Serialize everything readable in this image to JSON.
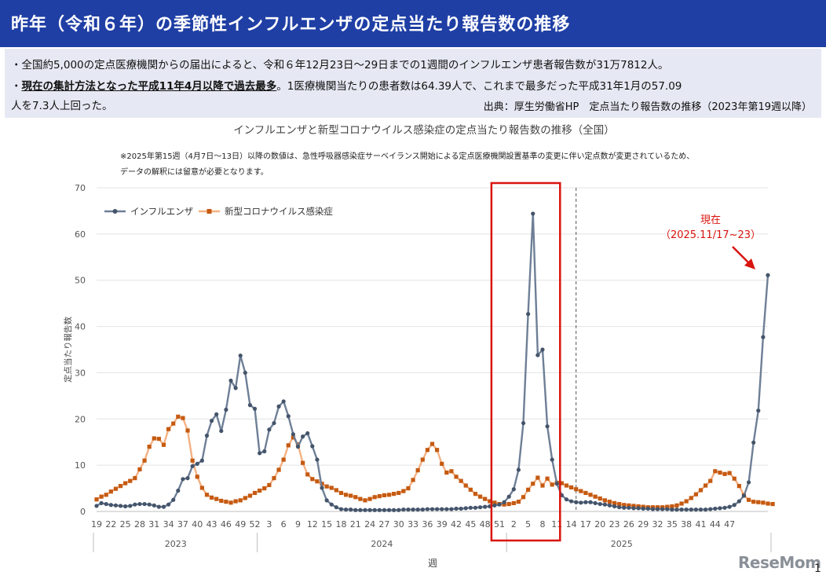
{
  "slide": {
    "title": "昨年（令和６年）の季節性インフルエンザの定点当たり報告数の推移",
    "bullet1": "・全国約5,000の定点医療機関からの届出によると、令和６年12月23日～29日までの1週間のインフルエンザ患者報告数が31万7812人。",
    "bullet2_prefix": "・",
    "bullet2_bold": "現在の集計方法となった平成11年4月以降で過去最多",
    "bullet2_rest": "。1医療機関当たりの患者数は64.39人で、これまで最多だった平成31年1月の57.09",
    "bullet3": "人を7.3人上回った。",
    "source": "出典：厚生労働省HP　定点当たり報告数の推移（2023年第19週以降）",
    "page_number": "1",
    "logo": "ReseMom"
  },
  "colors": {
    "title_bg": "#1f3fa5",
    "info_bg": "#e6e9f3",
    "influenza": "#6e7f96",
    "influenza_marker": "#44546a",
    "covid": "#f4b183",
    "covid_marker": "#c55a11",
    "highlight": "#d9140e",
    "annotation": "#d9140e"
  },
  "chart_data": {
    "type": "line",
    "title": "インフルエンザと新型コロナウイルス感染症の定点当たり報告数の推移（全国）",
    "note_line1": "※2025年第15週（4月7日～13日）以降の数値は、急性呼吸器感染症サーベイランス開始による定点医療機関設置基準の変更に伴い定点数が変更されているため、",
    "note_line2": "データの解釈には留意が必要となります。",
    "xlabel": "週",
    "ylabel": "定点当たり報告数",
    "ylim": [
      0,
      70
    ],
    "yticks": [
      0,
      10,
      20,
      30,
      40,
      50,
      60,
      70
    ],
    "week_tick_labels": [
      "19",
      "22",
      "25",
      "28",
      "31",
      "34",
      "37",
      "40",
      "43",
      "46",
      "49",
      "52",
      "3",
      "6",
      "9",
      "12",
      "15",
      "18",
      "21",
      "24",
      "27",
      "30",
      "33",
      "36",
      "39",
      "42",
      "45",
      "48",
      "51",
      "2",
      "5",
      "8",
      "11",
      "14",
      "17",
      "20",
      "23",
      "26",
      "29",
      "32",
      "35",
      "38",
      "41",
      "44",
      "47"
    ],
    "year_labels": [
      "2023",
      "2024",
      "2025"
    ],
    "year_spans_weeks": [
      [
        0,
        33
      ],
      [
        34,
        85
      ],
      [
        86,
        133
      ]
    ],
    "dashed_line_week_index": 100,
    "highlight_week_range": [
      83,
      96
    ],
    "annotation_text_1": "現在",
    "annotation_text_2": "（2025.11/17~23）",
    "grid": true,
    "legend_position": "top-left",
    "series": [
      {
        "name": "インフルエンザ",
        "values": [
          1.2,
          1.8,
          1.6,
          1.4,
          1.3,
          1.2,
          1.1,
          1.2,
          1.5,
          1.6,
          1.6,
          1.5,
          1.3,
          1.0,
          1.0,
          1.5,
          2.5,
          4.5,
          7.0,
          7.2,
          9.8,
          10.3,
          11.0,
          16.4,
          19.6,
          21.0,
          17.4,
          22.0,
          28.3,
          26.7,
          33.7,
          30.0,
          23.0,
          22.2,
          12.6,
          13.0,
          17.7,
          19.1,
          22.7,
          23.8,
          20.6,
          16.7,
          14.0,
          16.2,
          16.9,
          14.1,
          11.2,
          5.1,
          2.4,
          1.5,
          0.9,
          0.5,
          0.4,
          0.4,
          0.3,
          0.3,
          0.3,
          0.3,
          0.3,
          0.3,
          0.3,
          0.3,
          0.3,
          0.3,
          0.4,
          0.4,
          0.4,
          0.4,
          0.4,
          0.5,
          0.5,
          0.5,
          0.5,
          0.5,
          0.5,
          0.6,
          0.6,
          0.7,
          0.8,
          0.8,
          0.9,
          1.0,
          1.1,
          1.3,
          1.5,
          2.0,
          3.2,
          4.8,
          9.0,
          19.1,
          42.7,
          64.4,
          33.8,
          35.0,
          18.4,
          11.2,
          6.0,
          3.5,
          2.6,
          2.2,
          2.0,
          1.9,
          2.0,
          2.0,
          1.8,
          1.6,
          1.5,
          1.3,
          1.1,
          0.9,
          0.8,
          0.8,
          0.7,
          0.7,
          0.6,
          0.6,
          0.5,
          0.5,
          0.5,
          0.5,
          0.4,
          0.4,
          0.4,
          0.4,
          0.4,
          0.4,
          0.4,
          0.4,
          0.5,
          0.6,
          0.7,
          0.8,
          1.0,
          1.4,
          2.2,
          3.4,
          6.3,
          14.9,
          21.8,
          37.7,
          51.1
        ]
      },
      {
        "name": "新型コロナウイルス感染症",
        "values": [
          2.6,
          3.2,
          3.6,
          4.3,
          4.9,
          5.5,
          6.1,
          6.6,
          7.2,
          9.1,
          11.0,
          14.0,
          15.8,
          15.7,
          14.4,
          17.8,
          19.0,
          20.5,
          20.2,
          17.5,
          11.0,
          7.5,
          5.1,
          3.6,
          3.0,
          2.7,
          2.3,
          2.1,
          1.9,
          2.2,
          2.4,
          2.9,
          3.4,
          4.0,
          4.5,
          5.0,
          5.7,
          7.2,
          9.0,
          11.2,
          14.3,
          16.0,
          14.5,
          10.5,
          8.0,
          7.0,
          6.5,
          6.0,
          5.4,
          5.1,
          4.6,
          4.0,
          3.6,
          3.4,
          3.1,
          2.7,
          2.4,
          2.7,
          3.1,
          3.3,
          3.5,
          3.6,
          3.8,
          4.0,
          4.4,
          5.0,
          6.8,
          8.9,
          11.2,
          13.3,
          14.6,
          13.3,
          10.3,
          8.4,
          8.7,
          7.5,
          6.6,
          5.6,
          4.7,
          3.8,
          3.2,
          2.7,
          2.2,
          1.9,
          1.6,
          1.5,
          1.6,
          1.8,
          2.1,
          3.1,
          4.7,
          6.0,
          7.3,
          5.6,
          7.1,
          5.8,
          6.2,
          6.1,
          5.6,
          5.2,
          4.8,
          4.4,
          4.0,
          3.6,
          3.2,
          2.8,
          2.4,
          2.1,
          1.8,
          1.6,
          1.4,
          1.3,
          1.2,
          1.1,
          1.0,
          0.9,
          0.9,
          0.9,
          0.9,
          1.0,
          1.1,
          1.3,
          1.7,
          2.2,
          2.9,
          3.7,
          4.6,
          5.6,
          6.6,
          8.7,
          8.4,
          8.1,
          8.3,
          7.1,
          5.5,
          3.5,
          2.5,
          2.1,
          2.0,
          1.9,
          1.7,
          1.6
        ]
      }
    ]
  }
}
